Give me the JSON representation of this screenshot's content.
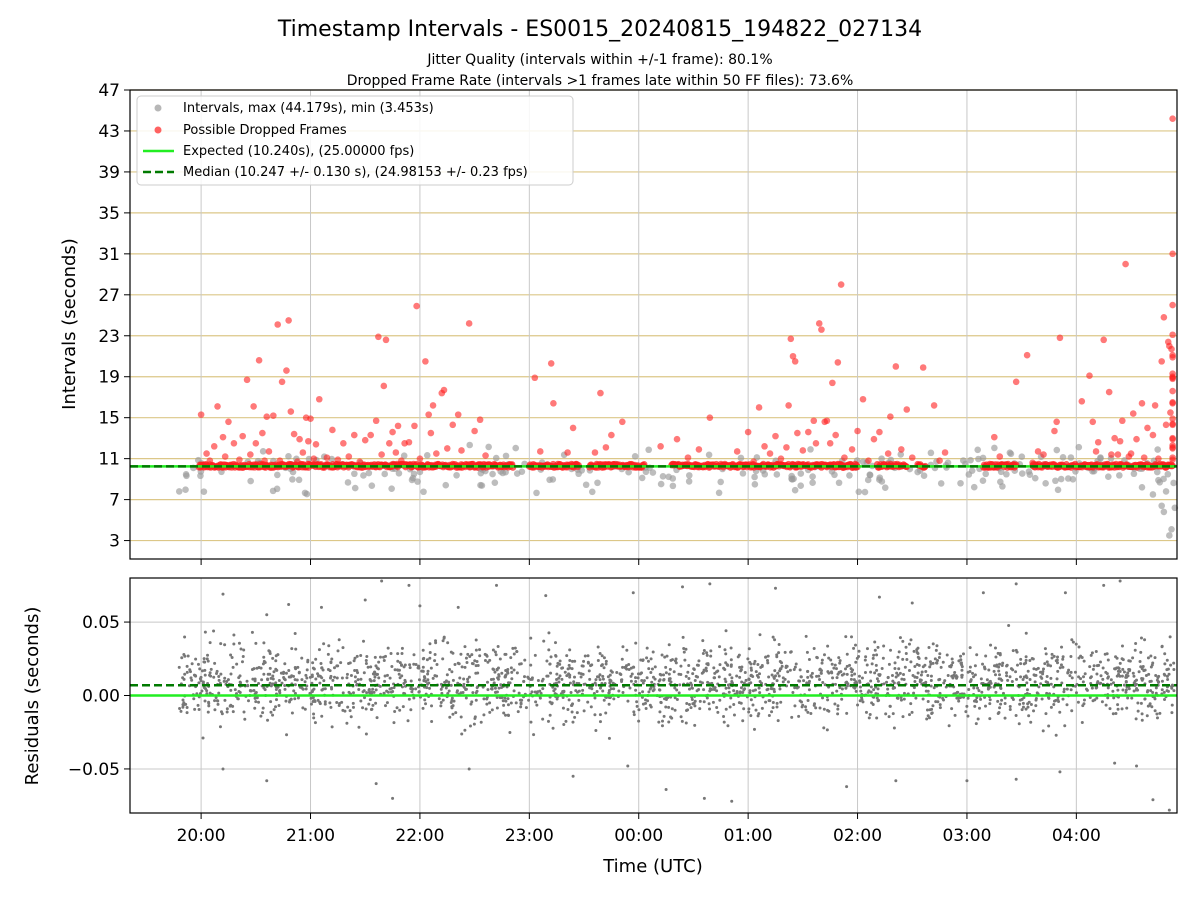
{
  "chart_data": [
    {
      "type": "scatter",
      "title": "Timestamp Intervals - ES0015_20240815_194822_027134",
      "subtitle_lines": [
        "Jitter Quality (intervals within +/-1 frame): 80.1%",
        "Dropped Frame Rate (intervals >1 frames late within 50 FF files): 73.6%"
      ],
      "ylabel": "Intervals (seconds)",
      "ylim": [
        1.2,
        47
      ],
      "yticks": [
        "3",
        "7",
        "11",
        "15",
        "19",
        "23",
        "27",
        "31",
        "35",
        "39",
        "43",
        "47"
      ],
      "xlim_hours": [
        -0.65,
        8.92
      ],
      "grid": true,
      "legend_position": "upper-left",
      "legend": [
        {
          "label": "Intervals, max (44.179s), min (3.453s)",
          "marker": "dot",
          "color": "#999999"
        },
        {
          "label": "Possible Dropped Frames",
          "marker": "dot",
          "color": "#ff2020"
        },
        {
          "label": "Expected (10.240s), (25.00000 fps)",
          "marker": "solid-line",
          "color": "#22ee22"
        },
        {
          "label": "Median (10.247 +/- 0.130 s), (24.98153 +/- 0.23 fps)",
          "marker": "dashed-line",
          "color": "#007a00"
        }
      ],
      "expected_value": 10.24,
      "median_value": 10.247,
      "dropped_dense_segments": [
        [
          -0.02,
          2.85
        ],
        [
          3.0,
          3.45
        ],
        [
          3.55,
          4.05
        ],
        [
          4.3,
          6.0
        ],
        [
          6.18,
          6.45
        ],
        [
          6.55,
          6.62
        ],
        [
          7.15,
          7.45
        ],
        [
          7.6,
          8.88
        ]
      ],
      "series": [
        {
          "name": "Possible Dropped Frames",
          "points": [
            [
              0.0,
              15.3
            ],
            [
              0.05,
              11.5
            ],
            [
              0.08,
              10.8
            ],
            [
              0.12,
              12.2
            ],
            [
              0.15,
              16.1
            ],
            [
              0.2,
              13.1
            ],
            [
              0.22,
              11.2
            ],
            [
              0.25,
              14.6
            ],
            [
              0.3,
              12.5
            ],
            [
              0.35,
              10.9
            ],
            [
              0.38,
              13.2
            ],
            [
              0.42,
              18.7
            ],
            [
              0.45,
              11.4
            ],
            [
              0.48,
              16.1
            ],
            [
              0.5,
              12.5
            ],
            [
              0.53,
              20.6
            ],
            [
              0.56,
              13.5
            ],
            [
              0.58,
              10.8
            ],
            [
              0.6,
              15.1
            ],
            [
              0.62,
              11.7
            ],
            [
              0.66,
              15.2
            ],
            [
              0.7,
              24.1
            ],
            [
              0.72,
              10.8
            ],
            [
              0.74,
              18.5
            ],
            [
              0.78,
              19.6
            ],
            [
              0.8,
              24.5
            ],
            [
              0.82,
              15.6
            ],
            [
              0.85,
              13.4
            ],
            [
              0.88,
              10.7
            ],
            [
              0.9,
              12.9
            ],
            [
              0.93,
              11.6
            ],
            [
              0.96,
              15.0
            ],
            [
              0.98,
              12.7
            ],
            [
              1.0,
              14.9
            ],
            [
              1.03,
              11.0
            ],
            [
              1.05,
              12.4
            ],
            [
              1.08,
              16.8
            ],
            [
              1.15,
              11.1
            ],
            [
              1.2,
              13.8
            ],
            [
              1.25,
              10.9
            ],
            [
              1.3,
              12.5
            ],
            [
              1.35,
              11.2
            ],
            [
              1.4,
              13.3
            ],
            [
              1.45,
              10.7
            ],
            [
              1.5,
              12.8
            ],
            [
              1.55,
              13.3
            ],
            [
              1.6,
              14.7
            ],
            [
              1.62,
              22.9
            ],
            [
              1.65,
              11.4
            ],
            [
              1.67,
              18.1
            ],
            [
              1.69,
              22.6
            ],
            [
              1.72,
              12.5
            ],
            [
              1.75,
              13.6
            ],
            [
              1.78,
              11.6
            ],
            [
              1.8,
              14.2
            ],
            [
              1.83,
              10.8
            ],
            [
              1.86,
              12.5
            ],
            [
              1.9,
              12.6
            ],
            [
              1.95,
              14.2
            ],
            [
              1.97,
              25.9
            ],
            [
              2.0,
              11.0
            ],
            [
              2.05,
              20.5
            ],
            [
              2.08,
              15.3
            ],
            [
              2.1,
              13.5
            ],
            [
              2.12,
              16.2
            ],
            [
              2.15,
              11.5
            ],
            [
              2.2,
              17.4
            ],
            [
              2.22,
              17.7
            ],
            [
              2.25,
              12.0
            ],
            [
              2.3,
              14.3
            ],
            [
              2.35,
              15.3
            ],
            [
              2.38,
              11.8
            ],
            [
              2.45,
              24.2
            ],
            [
              2.5,
              13.7
            ],
            [
              2.55,
              14.8
            ],
            [
              2.6,
              11.3
            ],
            [
              3.05,
              18.9
            ],
            [
              3.1,
              11.7
            ],
            [
              3.2,
              20.3
            ],
            [
              3.22,
              16.4
            ],
            [
              3.35,
              11.6
            ],
            [
              3.4,
              14.0
            ],
            [
              3.6,
              11.6
            ],
            [
              3.65,
              17.4
            ],
            [
              3.7,
              12.1
            ],
            [
              3.75,
              13.3
            ],
            [
              3.85,
              14.6
            ],
            [
              4.2,
              12.2
            ],
            [
              4.35,
              12.9
            ],
            [
              4.45,
              11.1
            ],
            [
              4.55,
              11.9
            ],
            [
              4.65,
              15.0
            ],
            [
              4.9,
              11.7
            ],
            [
              5.0,
              13.6
            ],
            [
              5.05,
              10.7
            ],
            [
              5.1,
              16.0
            ],
            [
              5.15,
              12.2
            ],
            [
              5.2,
              11.5
            ],
            [
              5.25,
              13.2
            ],
            [
              5.3,
              11.0
            ],
            [
              5.35,
              12.1
            ],
            [
              5.37,
              16.2
            ],
            [
              5.39,
              22.7
            ],
            [
              5.41,
              21.0
            ],
            [
              5.43,
              20.5
            ],
            [
              5.45,
              13.5
            ],
            [
              5.5,
              11.8
            ],
            [
              5.55,
              13.6
            ],
            [
              5.6,
              14.7
            ],
            [
              5.62,
              12.5
            ],
            [
              5.65,
              24.2
            ],
            [
              5.67,
              23.6
            ],
            [
              5.7,
              14.6
            ],
            [
              5.72,
              14.7
            ],
            [
              5.75,
              12.5
            ],
            [
              5.77,
              18.4
            ],
            [
              5.8,
              13.3
            ],
            [
              5.82,
              20.4
            ],
            [
              5.85,
              28.0
            ],
            [
              5.88,
              11.1
            ],
            [
              5.95,
              11.9
            ],
            [
              6.0,
              13.7
            ],
            [
              6.05,
              16.8
            ],
            [
              6.1,
              10.8
            ],
            [
              6.15,
              12.9
            ],
            [
              6.2,
              13.6
            ],
            [
              6.28,
              11.5
            ],
            [
              6.3,
              15.1
            ],
            [
              6.35,
              20.0
            ],
            [
              6.4,
              11.9
            ],
            [
              6.45,
              15.8
            ],
            [
              6.5,
              11.1
            ],
            [
              6.6,
              19.9
            ],
            [
              6.7,
              16.2
            ],
            [
              6.75,
              10.8
            ],
            [
              6.8,
              11.6
            ],
            [
              7.25,
              13.1
            ],
            [
              7.3,
              11.2
            ],
            [
              7.45,
              18.5
            ],
            [
              7.55,
              21.1
            ],
            [
              7.6,
              10.6
            ],
            [
              7.65,
              11.7
            ],
            [
              7.7,
              11.4
            ],
            [
              7.8,
              13.7
            ],
            [
              7.82,
              14.6
            ],
            [
              7.85,
              22.8
            ],
            [
              8.05,
              16.6
            ],
            [
              8.12,
              19.1
            ],
            [
              8.15,
              14.6
            ],
            [
              8.18,
              11.7
            ],
            [
              8.2,
              12.6
            ],
            [
              8.25,
              22.6
            ],
            [
              8.3,
              17.5
            ],
            [
              8.32,
              11.4
            ],
            [
              8.35,
              13.0
            ],
            [
              8.38,
              11.4
            ],
            [
              8.4,
              12.7
            ],
            [
              8.42,
              14.7
            ],
            [
              8.45,
              30.0
            ],
            [
              8.48,
              11.2
            ],
            [
              8.5,
              11.5
            ],
            [
              8.52,
              15.4
            ],
            [
              8.55,
              12.9
            ],
            [
              8.6,
              16.4
            ],
            [
              8.62,
              11.1
            ],
            [
              8.65,
              14.0
            ],
            [
              8.7,
              13.3
            ],
            [
              8.72,
              16.2
            ],
            [
              8.75,
              11.0
            ],
            [
              8.78,
              20.5
            ],
            [
              8.8,
              24.8
            ],
            [
              8.82,
              14.3
            ],
            [
              8.84,
              22.4
            ],
            [
              8.85,
              22.0
            ],
            [
              8.86,
              15.5
            ],
            [
              8.87,
              21.7
            ],
            [
              8.88,
              12.1
            ],
            [
              8.88,
              44.2
            ],
            [
              8.88,
              21.1
            ],
            [
              8.88,
              19.0
            ],
            [
              8.88,
              26.0
            ],
            [
              8.88,
              23.1
            ],
            [
              8.88,
              16.4
            ],
            [
              8.88,
              14.9
            ],
            [
              8.88,
              18.9
            ],
            [
              8.88,
              20.9
            ],
            [
              8.88,
              17.6
            ],
            [
              8.88,
              12.0
            ],
            [
              8.88,
              11.1
            ],
            [
              8.88,
              13.0
            ],
            [
              8.88,
              14.3
            ],
            [
              8.88,
              10.9
            ],
            [
              8.88,
              12.9
            ],
            [
              8.88,
              16.5
            ],
            [
              8.88,
              18.8
            ],
            [
              8.88,
              19.3
            ],
            [
              8.88,
              14.4
            ],
            [
              8.88,
              12.3
            ],
            [
              8.88,
              31.0
            ]
          ]
        }
      ]
    },
    {
      "type": "scatter",
      "ylabel": "Residuals (seconds)",
      "xlabel": "Time (UTC)",
      "ylim": [
        -0.08,
        0.08
      ],
      "yticks": [
        "0.05",
        "0.00",
        "−0.05"
      ],
      "xticks": [
        "20:00",
        "21:00",
        "22:00",
        "23:00",
        "00:00",
        "01:00",
        "02:00",
        "03:00",
        "04:00"
      ],
      "xlim_hours": [
        -0.65,
        8.92
      ],
      "grid": true,
      "expected_residual": 0.0,
      "median_residual": 0.007,
      "residual_range": [
        -0.031,
        0.049
      ],
      "outlier_points": [
        [
          0.2,
          0.069
        ],
        [
          0.6,
          0.055
        ],
        [
          0.8,
          0.062
        ],
        [
          1.1,
          0.06
        ],
        [
          1.5,
          0.065
        ],
        [
          1.65,
          0.078
        ],
        [
          1.9,
          0.075
        ],
        [
          2.0,
          0.061
        ],
        [
          2.35,
          0.06
        ],
        [
          2.7,
          0.075
        ],
        [
          3.15,
          0.068
        ],
        [
          3.95,
          0.07
        ],
        [
          4.4,
          0.074
        ],
        [
          4.65,
          0.076
        ],
        [
          5.25,
          0.073
        ],
        [
          6.2,
          0.067
        ],
        [
          6.5,
          0.063
        ],
        [
          7.15,
          0.07
        ],
        [
          7.45,
          0.076
        ],
        [
          7.9,
          0.07
        ],
        [
          8.25,
          0.075
        ],
        [
          8.4,
          0.078
        ],
        [
          0.2,
          -0.05
        ],
        [
          0.6,
          -0.058
        ],
        [
          1.6,
          -0.06
        ],
        [
          1.75,
          -0.07
        ],
        [
          2.45,
          -0.05
        ],
        [
          3.4,
          -0.055
        ],
        [
          3.9,
          -0.048
        ],
        [
          4.25,
          -0.064
        ],
        [
          4.6,
          -0.07
        ],
        [
          4.85,
          -0.072
        ],
        [
          5.9,
          -0.062
        ],
        [
          6.35,
          -0.058
        ],
        [
          7.0,
          -0.058
        ],
        [
          7.45,
          -0.057
        ],
        [
          7.85,
          -0.052
        ],
        [
          8.35,
          -0.046
        ],
        [
          8.55,
          -0.048
        ],
        [
          8.7,
          -0.071
        ],
        [
          8.85,
          -0.078
        ]
      ]
    }
  ]
}
